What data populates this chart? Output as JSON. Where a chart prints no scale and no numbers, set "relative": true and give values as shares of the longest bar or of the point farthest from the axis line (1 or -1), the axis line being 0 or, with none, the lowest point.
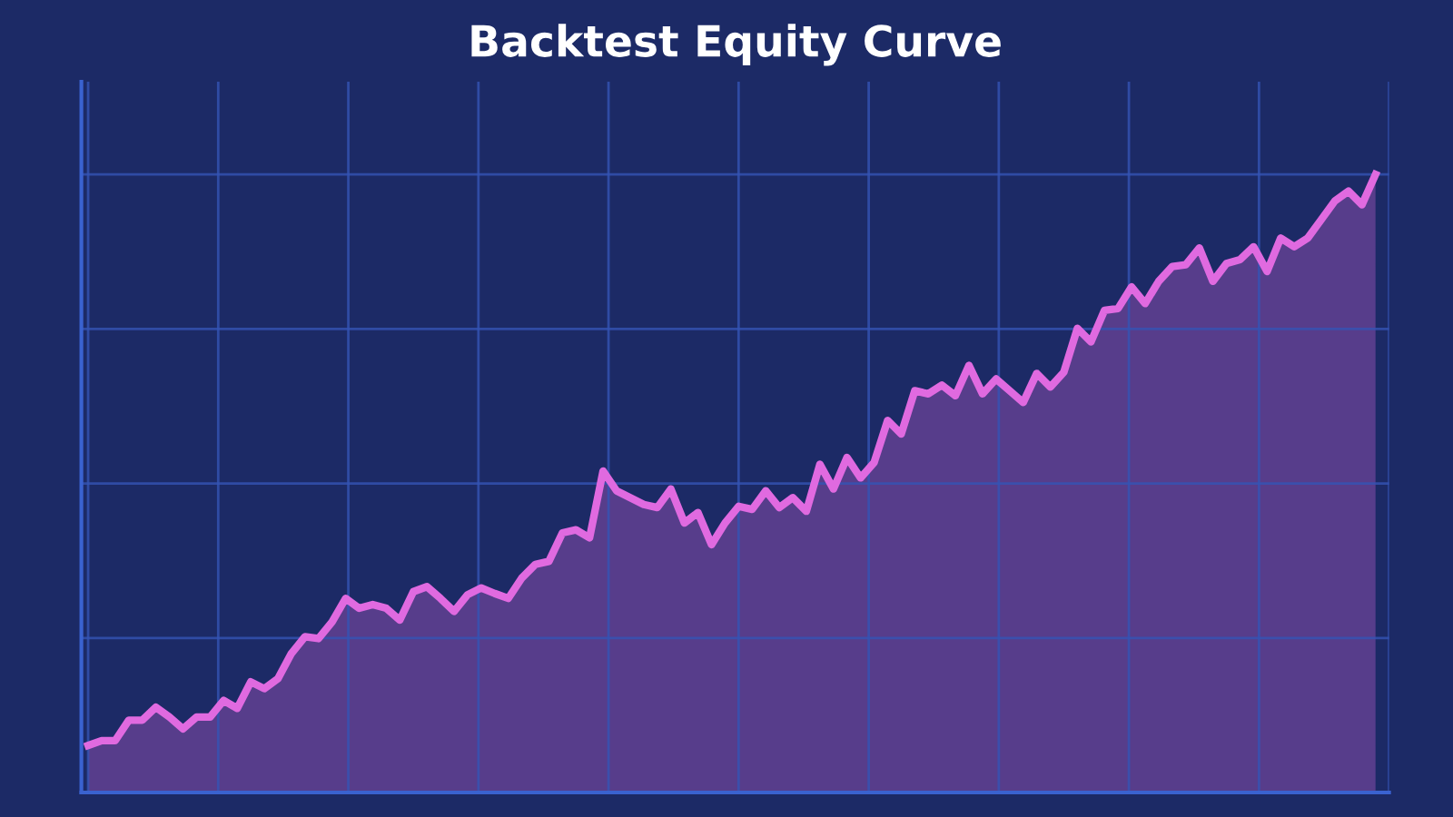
{
  "chart_data": {
    "type": "area",
    "title": "Backtest Equity Curve",
    "relative": true,
    "grid": true,
    "categories": [
      null,
      null,
      null,
      null,
      null,
      null,
      null,
      null,
      null,
      null,
      null,
      null,
      null,
      null,
      null,
      null,
      null,
      null,
      null,
      null,
      null,
      null,
      null,
      null,
      null,
      null,
      null,
      null,
      null,
      null,
      null,
      null,
      null,
      null,
      null,
      null,
      null,
      null,
      null,
      null,
      null,
      null,
      null,
      null,
      null,
      null,
      null,
      null,
      null,
      null,
      null,
      null,
      null,
      null,
      null,
      null,
      null,
      null,
      null,
      null,
      null,
      null,
      null,
      null,
      null,
      null,
      null,
      null,
      null,
      null,
      null,
      null,
      null,
      null,
      null,
      null,
      null,
      null,
      null,
      null,
      null,
      null,
      null,
      null,
      null,
      null,
      null,
      null,
      null,
      null,
      null,
      null,
      null,
      null,
      null,
      null
    ],
    "series": [
      {
        "color": "#e06ae0",
        "values": [
          0.076,
          0.084,
          0.084,
          0.117,
          0.117,
          0.138,
          0.122,
          0.103,
          0.122,
          0.122,
          0.149,
          0.136,
          0.179,
          0.168,
          0.184,
          0.225,
          0.252,
          0.249,
          0.276,
          0.314,
          0.298,
          0.304,
          0.298,
          0.279,
          0.325,
          0.333,
          0.314,
          0.293,
          0.32,
          0.331,
          0.322,
          0.314,
          0.347,
          0.369,
          0.374,
          0.42,
          0.425,
          0.412,
          0.52,
          0.488,
          0.477,
          0.466,
          0.461,
          0.491,
          0.436,
          0.453,
          0.401,
          0.436,
          0.463,
          0.458,
          0.488,
          0.461,
          0.477,
          0.455,
          0.531,
          0.491,
          0.542,
          0.509,
          0.534,
          0.602,
          0.58,
          0.65,
          0.645,
          0.659,
          0.642,
          0.691,
          0.645,
          0.669,
          0.65,
          0.631,
          0.678,
          0.656,
          0.68,
          0.751,
          0.729,
          0.78,
          0.783,
          0.818,
          0.791,
          0.827,
          0.851,
          0.854,
          0.881,
          0.827,
          0.856,
          0.862,
          0.883,
          0.843,
          0.897,
          0.883,
          0.897,
          0.927,
          0.957,
          0.973,
          0.951,
          1
        ]
      }
    ]
  }
}
